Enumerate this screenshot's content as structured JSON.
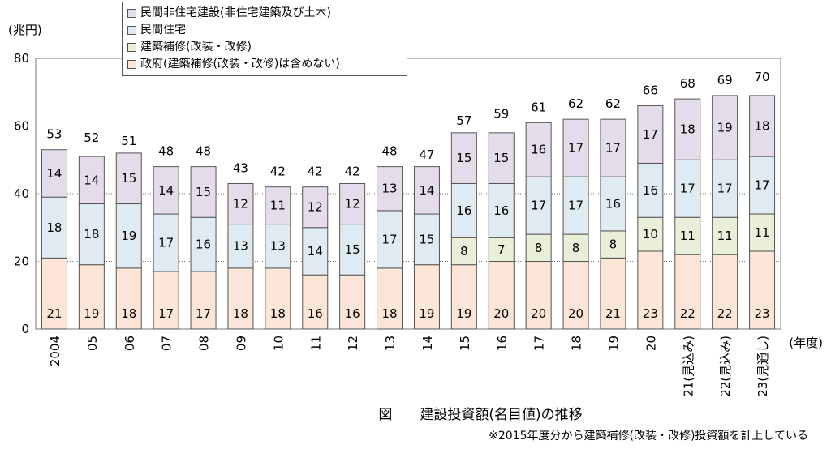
{
  "colors": {
    "private_nonresidential": "#e5dcea",
    "private_residential": "#dfeaf1",
    "renovation": "#e9efd9",
    "government": "#fbe5d6",
    "border": "#555555"
  },
  "legend": [
    {
      "key": "private_nonresidential",
      "label": "民間非住宅建設(非住宅建築及び土木)"
    },
    {
      "key": "private_residential",
      "label": "民間住宅"
    },
    {
      "key": "renovation",
      "label": "建築補修(改装・改修)"
    },
    {
      "key": "government",
      "label": "政府(建築補修(改装・改修)は含めない)"
    }
  ],
  "caption": "図　　建設投資額(名目値)の推移",
  "footnote": "※2015年度分から建築補修(改装・改修)投資額を計上している",
  "chart_data": {
    "type": "bar",
    "stacked": true,
    "ylabel": "(兆円)",
    "xlabel": "(年度)",
    "ylim": [
      0,
      80
    ],
    "yticks": [
      0,
      20,
      40,
      60,
      80
    ],
    "grid": "dotted",
    "legend_position": "top-left",
    "categories": [
      "2004",
      "05",
      "06",
      "07",
      "08",
      "09",
      "10",
      "11",
      "12",
      "13",
      "14",
      "15",
      "16",
      "17",
      "18",
      "19",
      "20",
      "21(見込み)",
      "22(見込み)",
      "23(見通し)"
    ],
    "totals": [
      53,
      52,
      51,
      48,
      48,
      43,
      42,
      42,
      42,
      48,
      47,
      57,
      59,
      61,
      62,
      62,
      66,
      68,
      69,
      70
    ],
    "series": [
      {
        "key": "government",
        "name": "政府(建築補修(改装・改修)は含めない)",
        "values": [
          21,
          19,
          18,
          17,
          17,
          18,
          18,
          16,
          16,
          18,
          19,
          19,
          20,
          20,
          20,
          21,
          23,
          22,
          22,
          23
        ]
      },
      {
        "key": "renovation",
        "name": "建築補修(改装・改修)",
        "values": [
          null,
          null,
          null,
          null,
          null,
          null,
          null,
          null,
          null,
          null,
          null,
          8,
          7,
          8,
          8,
          8,
          10,
          11,
          11,
          11
        ]
      },
      {
        "key": "private_residential",
        "name": "民間住宅",
        "values": [
          18,
          18,
          19,
          17,
          16,
          13,
          13,
          14,
          15,
          17,
          15,
          16,
          16,
          17,
          17,
          16,
          16,
          17,
          17,
          17
        ]
      },
      {
        "key": "private_nonresidential",
        "name": "民間非住宅建設(非住宅建築及び土木)",
        "values": [
          14,
          14,
          15,
          14,
          15,
          12,
          11,
          12,
          12,
          13,
          14,
          15,
          15,
          16,
          17,
          17,
          17,
          18,
          19,
          18
        ]
      }
    ]
  }
}
